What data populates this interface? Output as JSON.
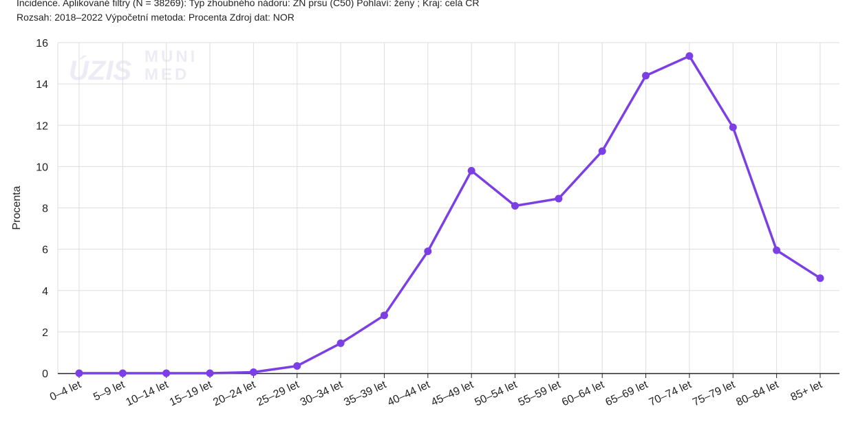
{
  "header": {
    "line1": "Incidence. Aplikované filtry (N = 38269): Typ zhoubného nádoru: ZN prsu (C50) Pohlaví: ženy ; Kraj: celá ČR",
    "line2": "Rozsah: 2018–2022 Výpočetní metoda: Procenta Zdroj dat: NOR"
  },
  "watermark": {
    "logo1": "ÚZIS",
    "logo2_top": "MUNI",
    "logo2_bottom": "MED"
  },
  "chart_data": {
    "type": "line",
    "title": "",
    "xlabel": "",
    "ylabel": "Procenta",
    "ylim": [
      0,
      16
    ],
    "yticks": [
      0,
      2,
      4,
      6,
      8,
      10,
      12,
      14,
      16
    ],
    "grid": true,
    "categories": [
      "0–4 let",
      "5–9 let",
      "10–14 let",
      "15–19 let",
      "20–24 let",
      "25–29 let",
      "30–34 let",
      "35–39 let",
      "40–44 let",
      "45–49 let",
      "50–54 let",
      "55–59 let",
      "60–64 let",
      "65–69 let",
      "70–74 let",
      "75–79 let",
      "80–84 let",
      "85+ let"
    ],
    "series": [
      {
        "color": "#7b3fe4",
        "values": [
          0.0,
          0.0,
          0.0,
          0.0,
          0.05,
          0.35,
          1.45,
          2.8,
          5.9,
          9.8,
          8.1,
          8.45,
          10.75,
          14.4,
          15.35,
          11.9,
          5.95,
          4.6
        ]
      }
    ]
  }
}
